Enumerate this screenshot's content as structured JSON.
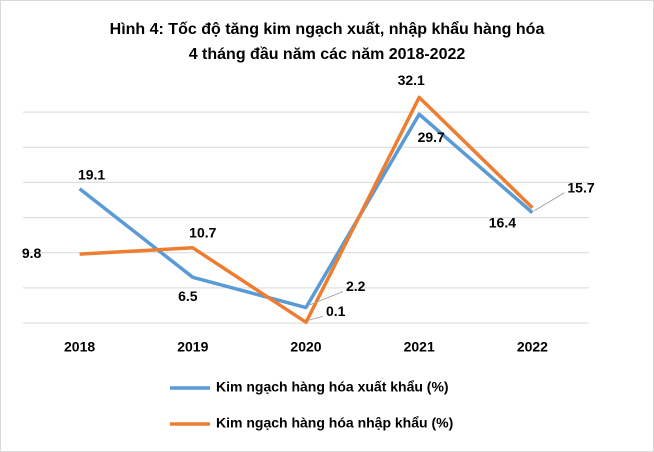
{
  "chart_data": {
    "type": "line",
    "title": [
      "Hình 4: Tốc độ tăng kim ngạch xuất, nhập khẩu hàng hóa",
      "4 tháng đầu năm các năm 2018-2022"
    ],
    "categories": [
      "2018",
      "2019",
      "2020",
      "2021",
      "2022"
    ],
    "series": [
      {
        "name": "Kim ngạch hàng hóa xuất khẩu (%)",
        "color": "#5b9bd5",
        "values": [
          19.1,
          6.5,
          2.2,
          29.7,
          15.7
        ]
      },
      {
        "name": "Kim ngạch hàng hóa nhập khẩu (%)",
        "color": "#ed7d31",
        "values": [
          9.8,
          10.7,
          0.1,
          32.1,
          16.4
        ]
      }
    ],
    "ylim": [
      0,
      35
    ],
    "yticks": [
      0,
      5,
      10,
      15,
      20,
      25,
      30
    ],
    "grid": true
  }
}
